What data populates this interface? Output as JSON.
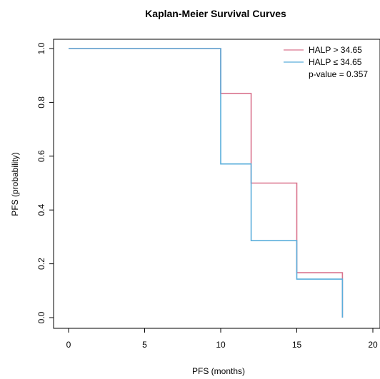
{
  "chart_data": {
    "type": "line",
    "step": true,
    "title": "Kaplan-Meier Survival Curves",
    "xlabel": "PFS (months)",
    "ylabel": "PFS (probability)",
    "xlim": [
      0,
      20
    ],
    "ylim": [
      0,
      1
    ],
    "xticks": [
      0,
      5,
      10,
      15,
      20
    ],
    "yticks": [
      0.0,
      0.2,
      0.4,
      0.6,
      0.8,
      1.0
    ],
    "xtick_labels": [
      "0",
      "5",
      "10",
      "15",
      "20"
    ],
    "ytick_labels": [
      "0.0",
      "0.2",
      "0.4",
      "0.6",
      "0.8",
      "1.0"
    ],
    "grid": false,
    "legend_position": "top-right",
    "series": [
      {
        "name": "HALP > 34.65",
        "color": "#d9738d",
        "x": [
          0,
          10,
          12,
          15,
          18,
          18
        ],
        "y": [
          1.0,
          0.833,
          0.5,
          0.167,
          0.0,
          0.0
        ]
      },
      {
        "name": "HALP ≤ 34.65",
        "color": "#5aaedb",
        "x": [
          0,
          10,
          12,
          15,
          18,
          18
        ],
        "y": [
          1.0,
          0.571,
          0.286,
          0.143,
          0.0,
          0.0
        ]
      }
    ],
    "annotation": "p-value = 0.357"
  }
}
